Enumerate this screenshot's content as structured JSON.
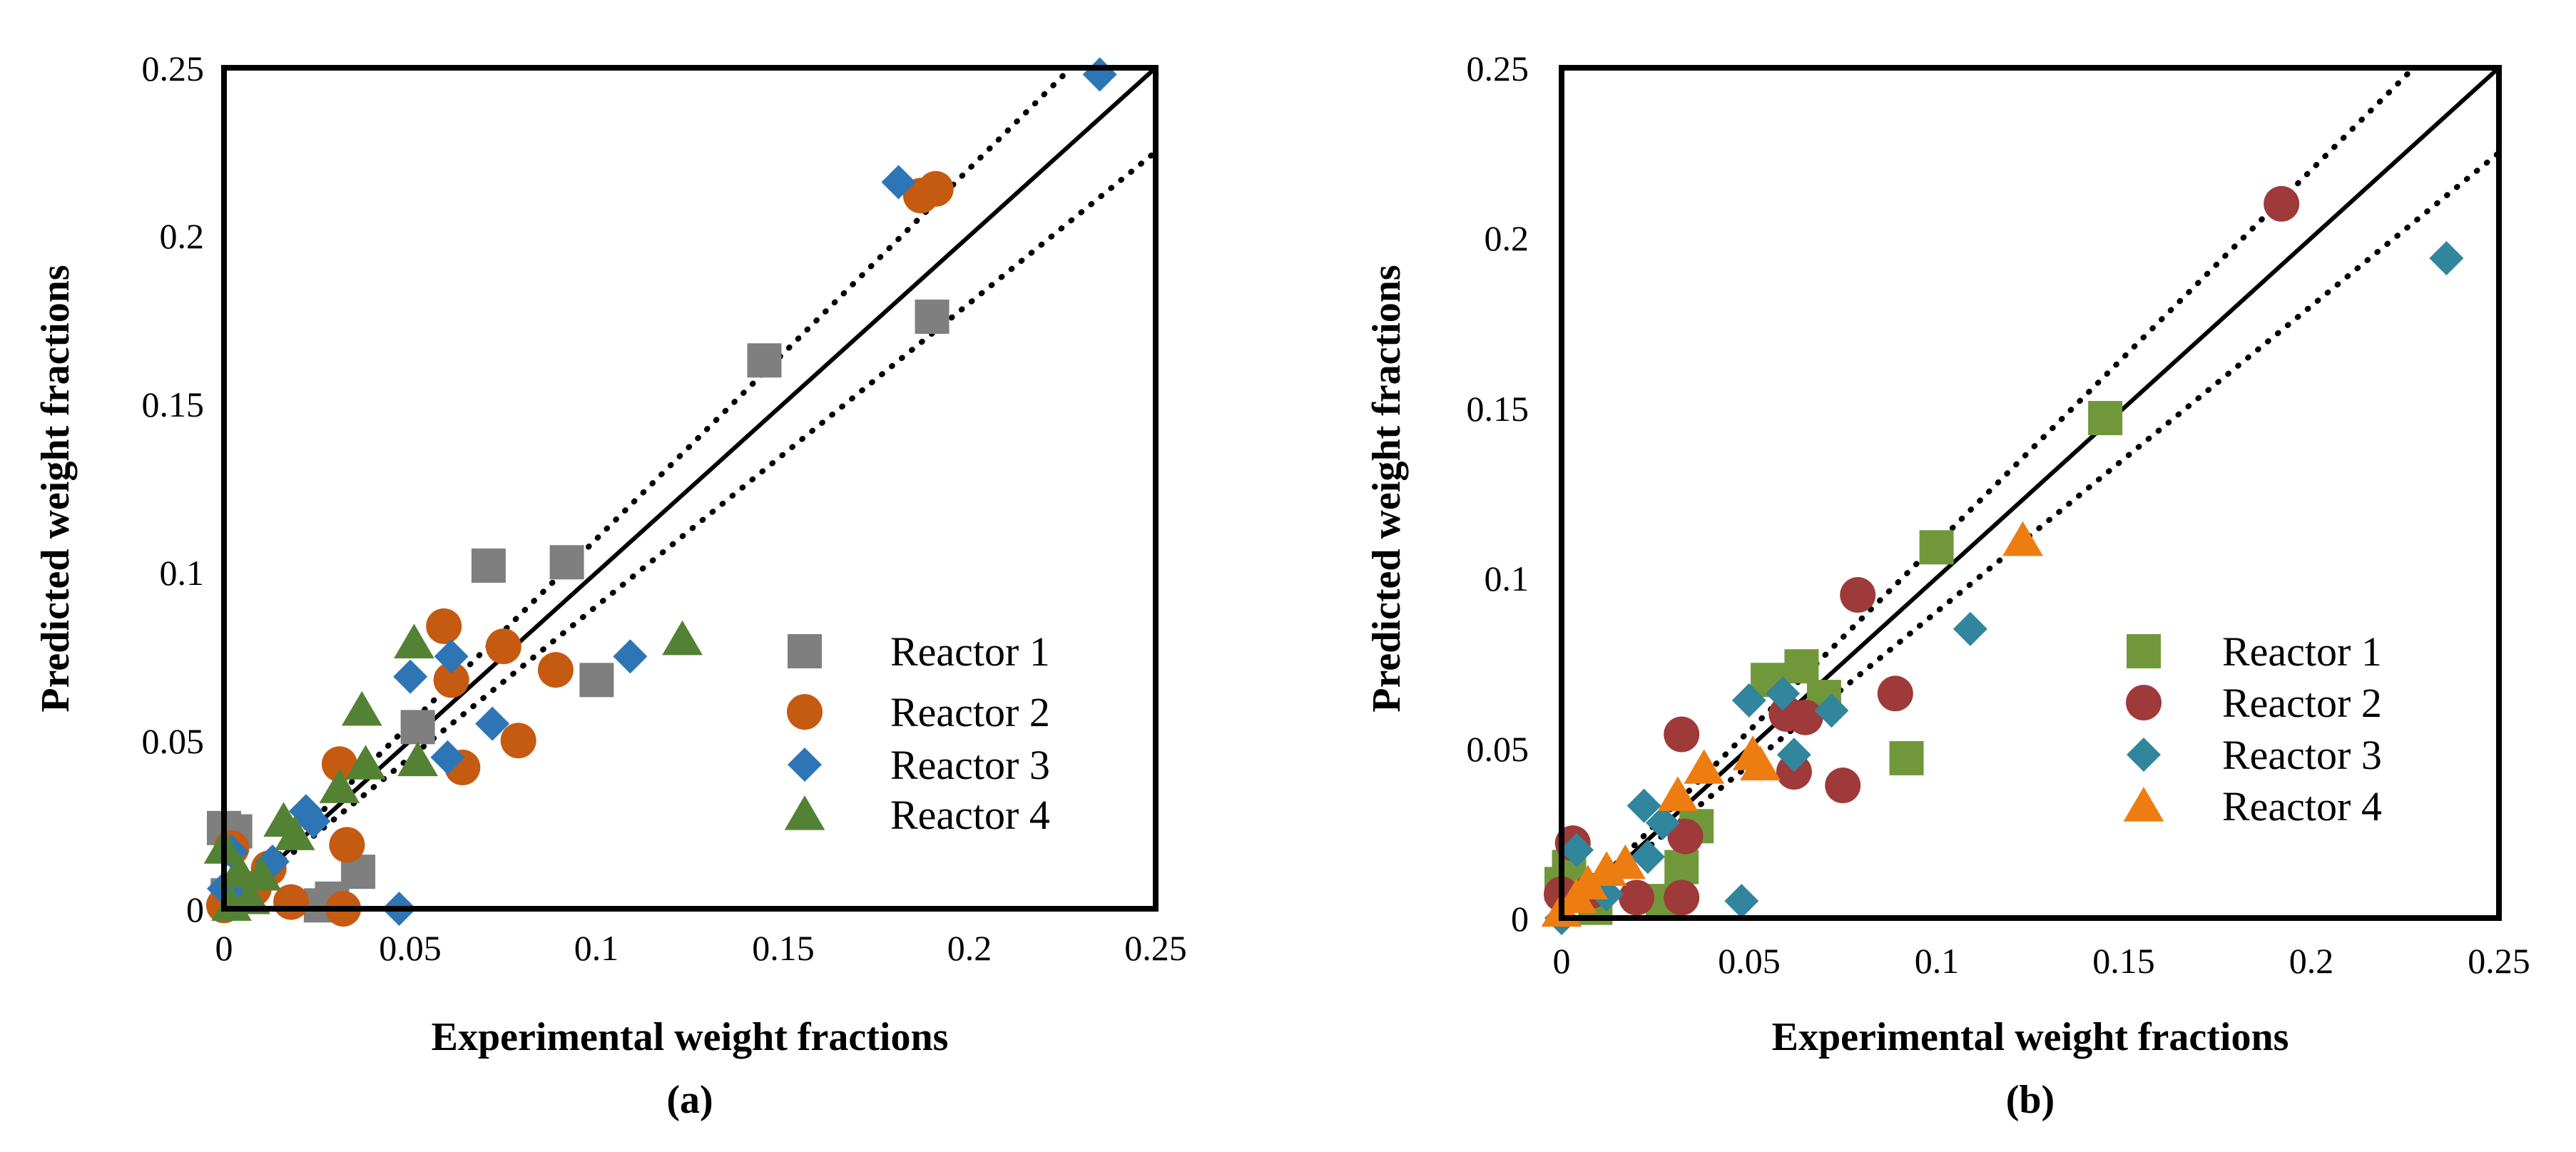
{
  "chart_data": [
    {
      "type": "scatter",
      "panel_label": "(a)",
      "xlabel": "Experimental weight fractions",
      "ylabel": "Predicted weight fractions",
      "xlim": [
        0,
        0.25
      ],
      "ylim": [
        0,
        0.25
      ],
      "xticks": [
        "0",
        "0.05",
        "0.1",
        "0.15",
        "0.2",
        "0.25"
      ],
      "yticks": [
        "0",
        "0.05",
        "0.1",
        "0.15",
        "0.2",
        "0.25"
      ],
      "reference_lines": [
        {
          "name": "parity",
          "style": "solid",
          "slope": 1.0
        },
        {
          "name": "upper-bound",
          "style": "dotted",
          "slope": 1.1
        },
        {
          "name": "lower-bound",
          "style": "dotted",
          "slope": 0.9
        }
      ],
      "legend_position": "lower-right",
      "series": [
        {
          "name": "Reactor 1",
          "marker": "square",
          "color": "#7f7f7f",
          "points": [
            [
              0.0,
              0.024
            ],
            [
              0.003,
              0.023
            ],
            [
              0.001,
              0.004
            ],
            [
              0.026,
              0.001
            ],
            [
              0.029,
              0.003
            ],
            [
              0.036,
              0.011
            ],
            [
              0.052,
              0.054
            ],
            [
              0.071,
              0.102
            ],
            [
              0.092,
              0.103
            ],
            [
              0.1,
              0.068
            ],
            [
              0.145,
              0.163
            ],
            [
              0.19,
              0.176
            ]
          ]
        },
        {
          "name": "Reactor 2",
          "marker": "circle",
          "color": "#c55a11",
          "points": [
            [
              0.0,
              0.001
            ],
            [
              0.002,
              0.018
            ],
            [
              0.008,
              0.006
            ],
            [
              0.012,
              0.012
            ],
            [
              0.018,
              0.002
            ],
            [
              0.032,
              0.0
            ],
            [
              0.031,
              0.043
            ],
            [
              0.033,
              0.019
            ],
            [
              0.059,
              0.084
            ],
            [
              0.061,
              0.068
            ],
            [
              0.064,
              0.042
            ],
            [
              0.075,
              0.078
            ],
            [
              0.079,
              0.05
            ],
            [
              0.089,
              0.071
            ],
            [
              0.187,
              0.212
            ],
            [
              0.191,
              0.214
            ]
          ]
        },
        {
          "name": "Reactor 3",
          "marker": "diamond",
          "color": "#2e75b6",
          "points": [
            [
              0.0,
              0.006
            ],
            [
              0.002,
              0.017
            ],
            [
              0.005,
              0.003
            ],
            [
              0.013,
              0.014
            ],
            [
              0.022,
              0.029
            ],
            [
              0.024,
              0.026
            ],
            [
              0.047,
              0.0
            ],
            [
              0.05,
              0.069
            ],
            [
              0.06,
              0.045
            ],
            [
              0.061,
              0.075
            ],
            [
              0.072,
              0.055
            ],
            [
              0.109,
              0.075
            ],
            [
              0.181,
              0.216
            ],
            [
              0.235,
              0.248
            ]
          ]
        },
        {
          "name": "Reactor 4",
          "marker": "triangle",
          "color": "#548235",
          "points": [
            [
              0.0,
              0.018
            ],
            [
              0.002,
              0.001
            ],
            [
              0.004,
              0.011
            ],
            [
              0.007,
              0.003
            ],
            [
              0.01,
              0.01
            ],
            [
              0.016,
              0.026
            ],
            [
              0.019,
              0.022
            ],
            [
              0.031,
              0.036
            ],
            [
              0.037,
              0.059
            ],
            [
              0.038,
              0.043
            ],
            [
              0.051,
              0.079
            ],
            [
              0.052,
              0.044
            ],
            [
              0.123,
              0.08
            ]
          ]
        }
      ]
    },
    {
      "type": "scatter",
      "panel_label": "(b)",
      "xlabel": "Experimental weight fractions",
      "ylabel": "Predicted weight fractions",
      "xlim": [
        0,
        0.25
      ],
      "ylim": [
        0,
        0.25
      ],
      "xticks": [
        "0",
        "0.05",
        "0.1",
        "0.15",
        "0.2",
        "0.25"
      ],
      "yticks": [
        "0",
        "0.05",
        "0.1",
        "0.15",
        "0.2",
        "0.25"
      ],
      "reference_lines": [
        {
          "name": "parity",
          "style": "solid",
          "slope": 1.0
        },
        {
          "name": "upper-bound",
          "style": "dotted",
          "slope": 1.1
        },
        {
          "name": "lower-bound",
          "style": "dotted",
          "slope": 0.9
        }
      ],
      "legend_position": "lower-right",
      "series": [
        {
          "name": "Reactor 1",
          "marker": "square",
          "color": "#70983a",
          "points": [
            [
              0.0,
              0.01
            ],
            [
              0.002,
              0.015
            ],
            [
              0.009,
              0.003
            ],
            [
              0.027,
              0.005
            ],
            [
              0.032,
              0.015
            ],
            [
              0.036,
              0.027
            ],
            [
              0.055,
              0.07
            ],
            [
              0.064,
              0.074
            ],
            [
              0.07,
              0.065
            ],
            [
              0.092,
              0.047
            ],
            [
              0.1,
              0.109
            ],
            [
              0.145,
              0.147
            ]
          ]
        },
        {
          "name": "Reactor 2",
          "marker": "circle",
          "color": "#9e3a3a",
          "points": [
            [
              0.0,
              0.007
            ],
            [
              0.003,
              0.022
            ],
            [
              0.008,
              0.008
            ],
            [
              0.02,
              0.006
            ],
            [
              0.032,
              0.054
            ],
            [
              0.032,
              0.006
            ],
            [
              0.033,
              0.024
            ],
            [
              0.06,
              0.06
            ],
            [
              0.062,
              0.043
            ],
            [
              0.065,
              0.059
            ],
            [
              0.075,
              0.039
            ],
            [
              0.079,
              0.095
            ],
            [
              0.089,
              0.066
            ],
            [
              0.192,
              0.21
            ]
          ]
        },
        {
          "name": "Reactor 3",
          "marker": "diamond",
          "color": "#31859c",
          "points": [
            [
              0.0,
              0.0
            ],
            [
              0.004,
              0.02
            ],
            [
              0.012,
              0.007
            ],
            [
              0.022,
              0.033
            ],
            [
              0.023,
              0.018
            ],
            [
              0.027,
              0.028
            ],
            [
              0.048,
              0.005
            ],
            [
              0.05,
              0.064
            ],
            [
              0.059,
              0.066
            ],
            [
              0.062,
              0.048
            ],
            [
              0.072,
              0.061
            ],
            [
              0.109,
              0.085
            ],
            [
              0.236,
              0.194
            ]
          ]
        },
        {
          "name": "Reactor 4",
          "marker": "triangle",
          "color": "#ed7d11",
          "points": [
            [
              0.0,
              0.002
            ],
            [
              0.004,
              0.006
            ],
            [
              0.007,
              0.01
            ],
            [
              0.012,
              0.014
            ],
            [
              0.017,
              0.016
            ],
            [
              0.031,
              0.036
            ],
            [
              0.038,
              0.044
            ],
            [
              0.051,
              0.048
            ],
            [
              0.053,
              0.045
            ],
            [
              0.123,
              0.111
            ]
          ]
        }
      ]
    }
  ]
}
